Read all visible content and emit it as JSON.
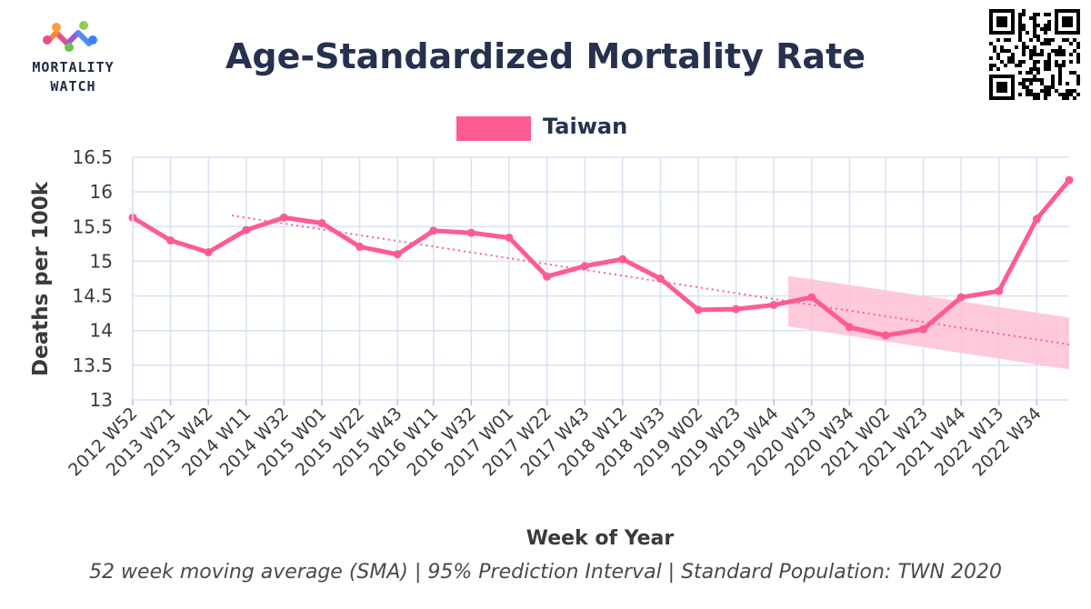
{
  "logo": {
    "line1": "MORTALITY",
    "line2": "WATCH"
  },
  "title": "Age-Standardized Mortality Rate",
  "colors": {
    "series": "#ff5a94",
    "band": "#ffc0d6",
    "grid": "#d9e1f5",
    "title": "#25314f"
  },
  "chart_data": {
    "type": "line",
    "title": "Age-Standardized Mortality Rate",
    "xlabel": "Week of Year",
    "ylabel": "Deaths per 100k",
    "caption": "52 week moving average (SMA) | 95% Prediction Interval | Standard Population: TWN 2020",
    "legend": {
      "position": "top-center",
      "entries": [
        "Taiwan"
      ]
    },
    "grid": true,
    "ylim": [
      13,
      16.5
    ],
    "yticks": [
      "13",
      "13.5",
      "14",
      "14.5",
      "15",
      "15.5",
      "16",
      "16.5"
    ],
    "xticks": [
      "2012 W52",
      "2013 W21",
      "2013 W42",
      "2014 W11",
      "2014 W32",
      "2015 W01",
      "2015 W22",
      "2015 W43",
      "2016 W11",
      "2016 W32",
      "2017 W01",
      "2017 W22",
      "2017 W43",
      "2018 W12",
      "2018 W33",
      "2019 W02",
      "2019 W23",
      "2019 W44",
      "2020 W13",
      "2020 W34",
      "2021 W02",
      "2021 W23",
      "2021 W44",
      "2022 W13",
      "2022 W34"
    ],
    "series": [
      {
        "name": "Taiwan",
        "x": [
          "2012 W52",
          "2013 W21",
          "2013 W42",
          "2014 W11",
          "2014 W32",
          "2015 W01",
          "2015 W22",
          "2015 W43",
          "2016 W11",
          "2016 W32",
          "2017 W01",
          "2017 W22",
          "2017 W43",
          "2018 W12",
          "2018 W33",
          "2019 W02",
          "2019 W23",
          "2019 W44",
          "2020 W13",
          "2020 W34",
          "2021 W02",
          "2021 W23",
          "2021 W44",
          "2022 W13",
          "2022 W34",
          "2022 W52"
        ],
        "values": [
          15.63,
          15.3,
          15.13,
          15.45,
          15.63,
          15.55,
          15.21,
          15.1,
          15.44,
          15.41,
          15.34,
          14.78,
          14.93,
          15.03,
          14.75,
          14.3,
          14.31,
          14.37,
          14.48,
          14.05,
          13.93,
          14.02,
          14.48,
          14.57,
          15.61,
          16.17
        ]
      },
      {
        "name": "Trend",
        "x": [
          "2014 W03",
          "2022 W52"
        ],
        "values": [
          15.66,
          13.8
        ]
      },
      {
        "name": "95% Prediction Interval",
        "x": [
          "2019 W52",
          "2022 W52"
        ],
        "upper": [
          14.79,
          14.19
        ],
        "lower": [
          14.06,
          13.44
        ]
      }
    ]
  }
}
